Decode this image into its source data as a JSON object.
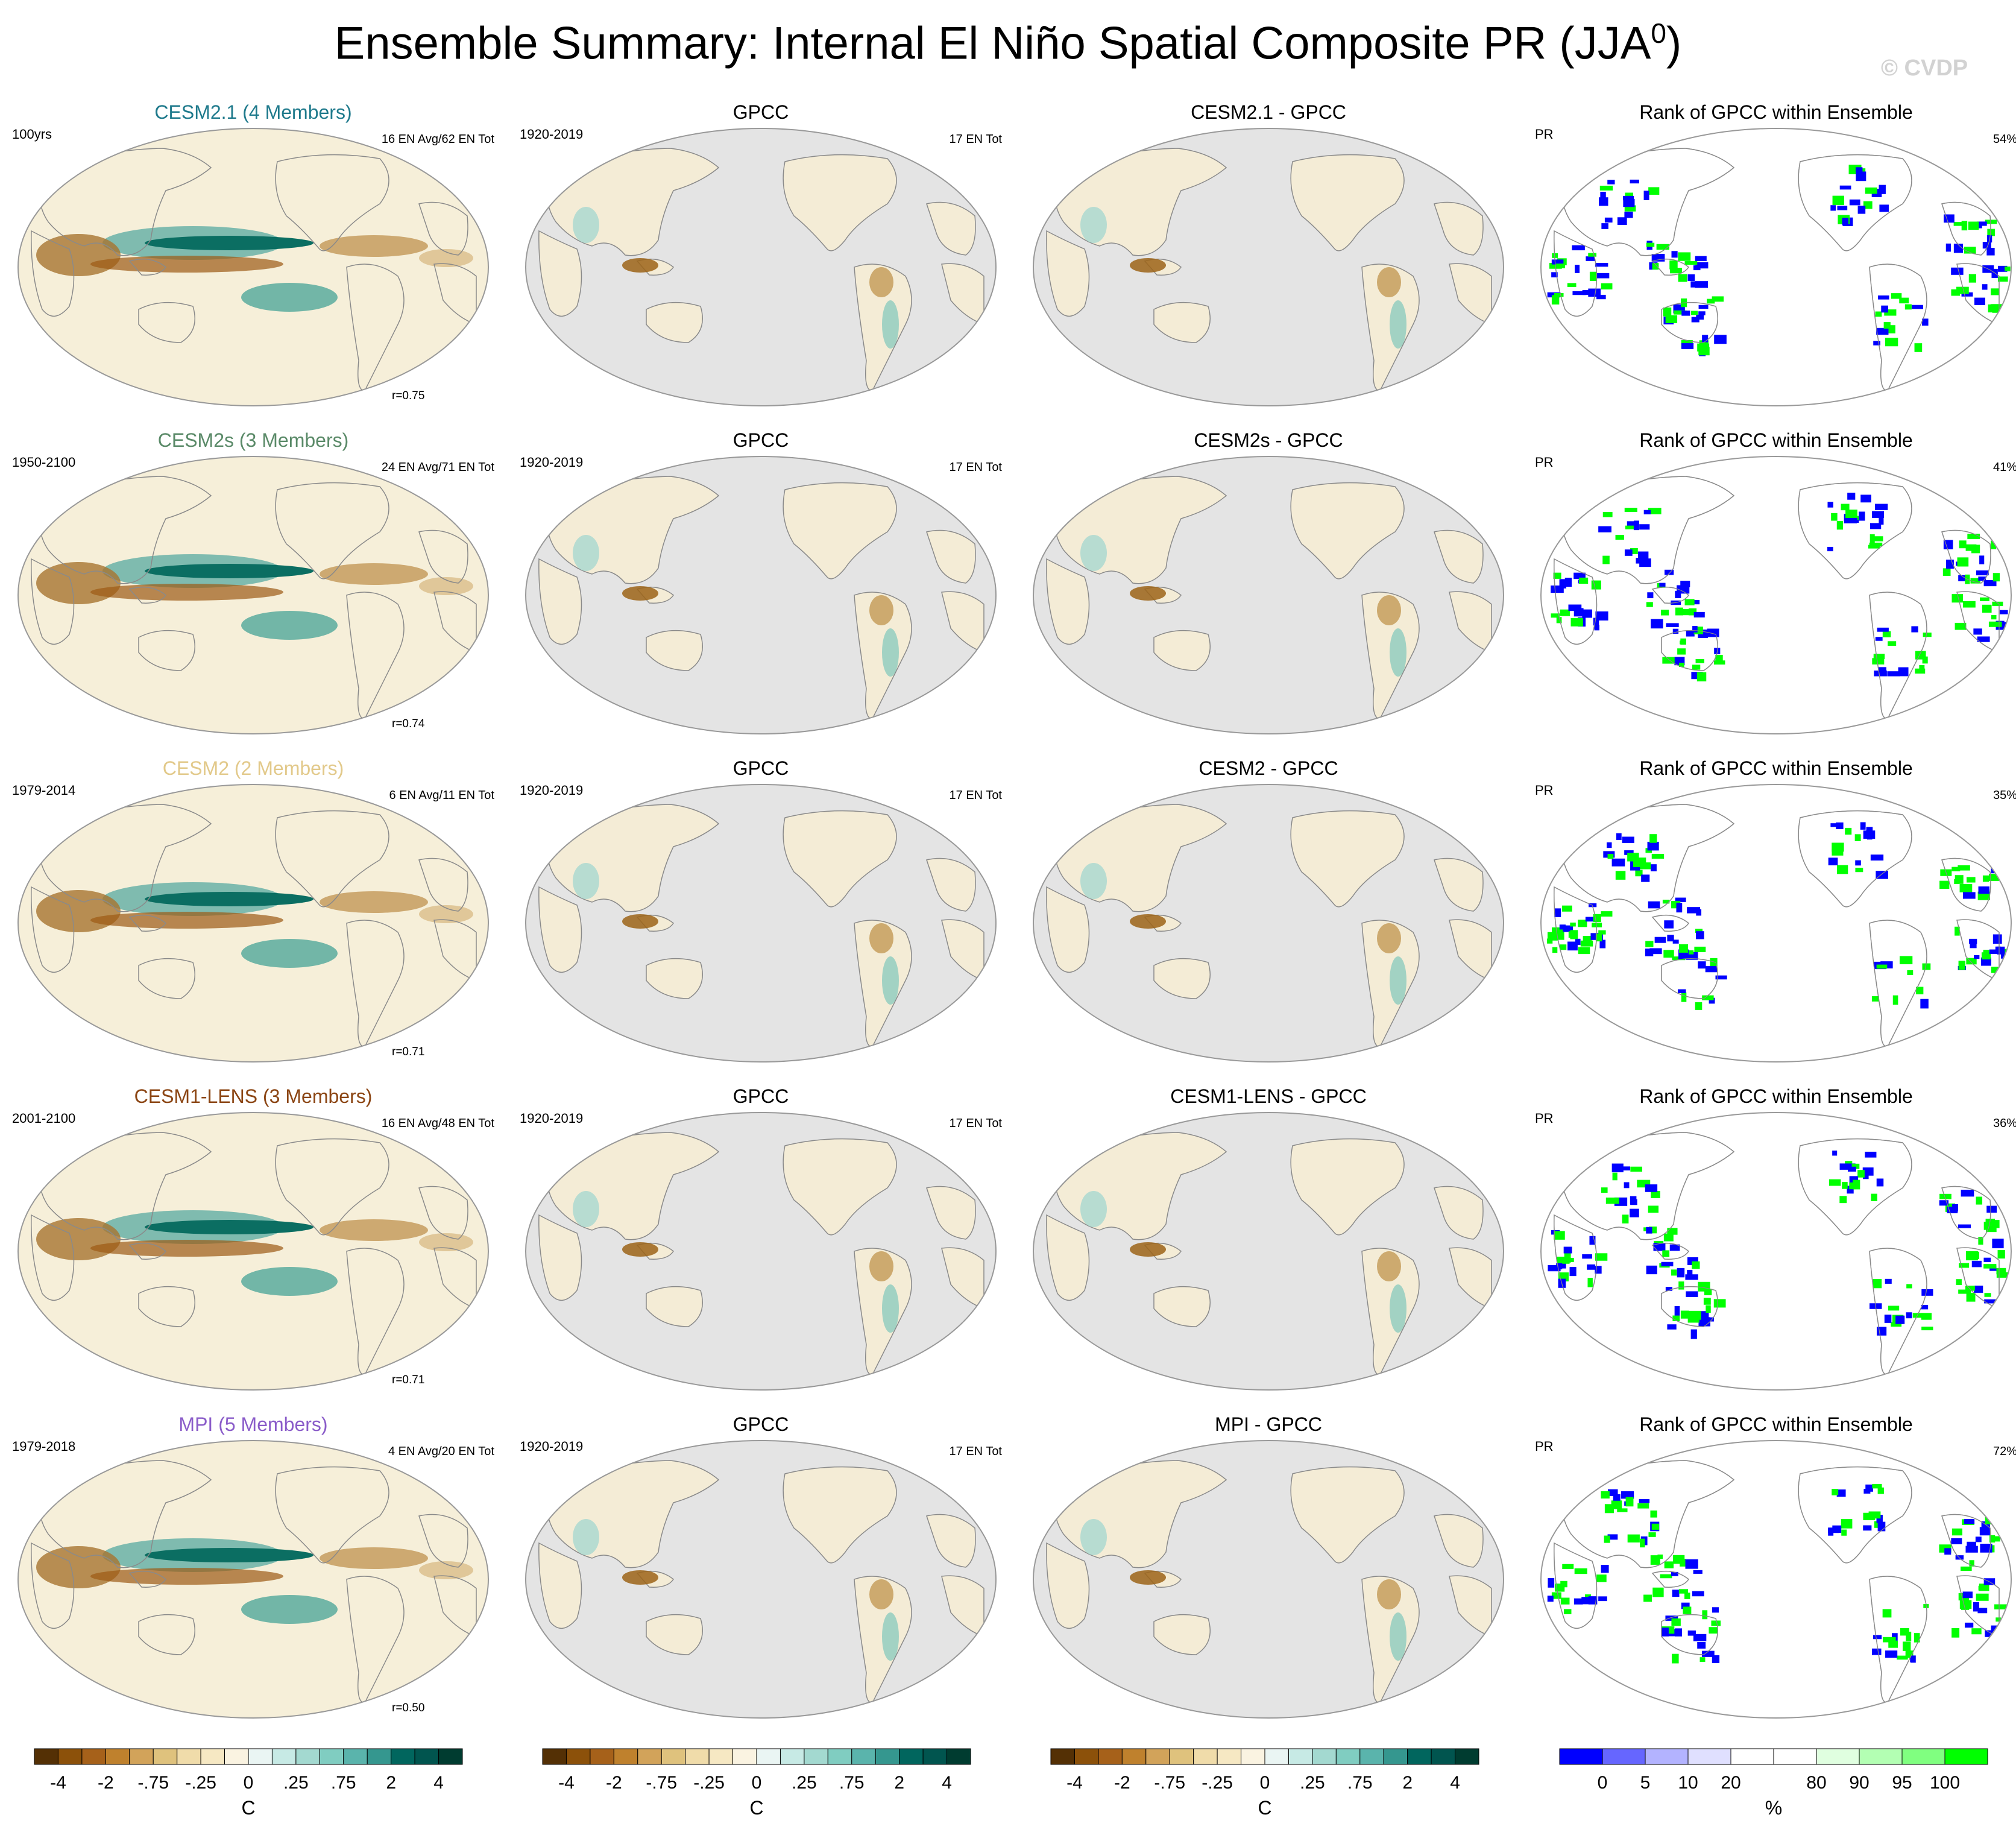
{
  "header": {
    "title": "Ensemble Summary: Internal El Niño Spatial Composite PR (JJA",
    "title_sup": "0",
    "title_close": ")",
    "watermark": "© CVDP"
  },
  "chart_data": {
    "type": "map-panel-grid",
    "rows": [
      {
        "model": "CESM2.1 (4 Members)",
        "model_color": "#1f7a8c",
        "years": "100yrs",
        "events": "16 EN Avg/62 EN Tot",
        "r": "r=0.75",
        "obs": "GPCC",
        "obs_years": "1920-2019",
        "obs_events": "17 EN Tot",
        "diff_title": "CESM2.1 - GPCC",
        "rank_title": "Rank of GPCC within Ensemble",
        "rank_var": "PR",
        "rank_pct": "54%"
      },
      {
        "model": "CESM2s (3 Members)",
        "model_color": "#5a8a68",
        "years": "1950-2100",
        "events": "24 EN Avg/71 EN Tot",
        "r": "r=0.74",
        "obs": "GPCC",
        "obs_years": "1920-2019",
        "obs_events": "17 EN Tot",
        "diff_title": "CESM2s - GPCC",
        "rank_title": "Rank of GPCC within Ensemble",
        "rank_var": "PR",
        "rank_pct": "41%"
      },
      {
        "model": "CESM2 (2 Members)",
        "model_color": "#e2c98a",
        "years": "1979-2014",
        "events": "6 EN Avg/11 EN Tot",
        "r": "r=0.71",
        "obs": "GPCC",
        "obs_years": "1920-2019",
        "obs_events": "17 EN Tot",
        "diff_title": "CESM2 - GPCC",
        "rank_title": "Rank of GPCC within Ensemble",
        "rank_var": "PR",
        "rank_pct": "35%"
      },
      {
        "model": "CESM1-LENS (3 Members)",
        "model_color": "#8b4513",
        "years": "2001-2100",
        "events": "16 EN Avg/48 EN Tot",
        "r": "r=0.71",
        "obs": "GPCC",
        "obs_years": "1920-2019",
        "obs_events": "17 EN Tot",
        "diff_title": "CESM1-LENS - GPCC",
        "rank_title": "Rank of GPCC within Ensemble",
        "rank_var": "PR",
        "rank_pct": "36%"
      },
      {
        "model": "MPI (5 Members)",
        "model_color": "#8a5cc9",
        "years": "1979-2018",
        "events": "4 EN Avg/20 EN Tot",
        "r": "r=0.50",
        "obs": "GPCC",
        "obs_years": "1920-2019",
        "obs_events": "17 EN Tot",
        "diff_title": "MPI - GPCC",
        "rank_title": "Rank of GPCC within Ensemble",
        "rank_var": "PR",
        "rank_pct": "72%"
      }
    ],
    "colorbar_pr": {
      "colors": [
        "#543005",
        "#8c510a",
        "#a6611a",
        "#bf812d",
        "#d2a35a",
        "#dfc27d",
        "#f0dcaa",
        "#f6e8c3",
        "#faf3e1",
        "#eaf5f3",
        "#c7eae5",
        "#a3d9d0",
        "#80cdc1",
        "#5ab4ac",
        "#35978f",
        "#01665e",
        "#01554f",
        "#003c30"
      ],
      "ticks": [
        "-4",
        "-2",
        "-.75",
        "-.25",
        "0",
        ".25",
        ".75",
        "2",
        "4"
      ],
      "unit": "C"
    },
    "colorbar_rank": {
      "colors": [
        "#0000ff",
        "#6666ff",
        "#b3b3ff",
        "#e0e0ff",
        "#ffffff",
        "#ffffff",
        "#e0ffe0",
        "#b3ffb3",
        "#80ff80",
        "#00ff00"
      ],
      "ticks": [
        "0",
        "5",
        "10",
        "20",
        "80",
        "90",
        "95",
        "100"
      ],
      "unit": "%"
    }
  }
}
